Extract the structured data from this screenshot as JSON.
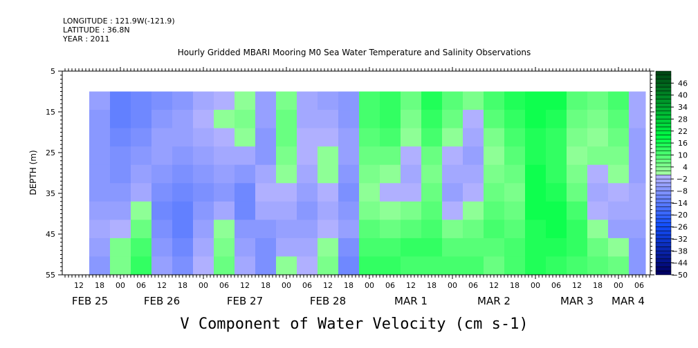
{
  "header": {
    "longitude": "LONGITUDE : 121.9W(-121.9)",
    "latitude": "LATITUDE : 36.8N",
    "year": "YEAR : 2011"
  },
  "chart_data": {
    "type": "heatmap",
    "title": "Hourly Gridded MBARI Mooring M0 Sea Water Temperature and Salinity Observations",
    "xlabel": "V Component of Water Velocity (cm s-1)",
    "ylabel": "DEPTH (m)",
    "xlim_hours_from_feb25_00": [
      7,
      177.4
    ],
    "ylim": [
      55,
      5
    ],
    "y_ticks": [
      5,
      15,
      25,
      35,
      45,
      55
    ],
    "x_tick_labels": [
      "12",
      "18",
      "00",
      "06",
      "12",
      "18",
      "00",
      "06",
      "12",
      "18",
      "00",
      "06",
      "12",
      "18",
      "00",
      "06",
      "12",
      "18",
      "00",
      "06",
      "12",
      "18",
      "00",
      "06",
      "12",
      "18",
      "00",
      "06"
    ],
    "x_tick_start_hour": 12,
    "x_tick_step_hours": 6,
    "date_labels": [
      "FEB 25",
      "FEB 26",
      "FEB 27",
      "FEB 28",
      "MAR  1",
      "MAR  2",
      "MAR  3",
      "MAR  4"
    ],
    "colorbar": {
      "min": -50,
      "max": 52,
      "step": 2,
      "tick_labels": [
        "46",
        "40",
        "34",
        "28",
        "22",
        "16",
        "10",
        "4",
        "-2",
        "-8",
        "-14",
        "-20",
        "-26",
        "-32",
        "-38",
        "-44",
        "-50"
      ]
    },
    "grid_time_start_hour": 15,
    "grid_time_step_hours": 6,
    "depths": [
      10,
      15,
      20,
      25,
      30,
      35,
      40,
      45,
      50,
      55
    ],
    "values": [
      [
        -6,
        -8,
        -8,
        -8,
        -8,
        -8,
        -6,
        -4,
        -6,
        -8
      ],
      [
        -14,
        -14,
        -12,
        -10,
        -10,
        -8,
        -6,
        -2,
        4,
        4
      ],
      [
        -12,
        -12,
        -10,
        -8,
        -6,
        -4,
        2,
        6,
        10,
        12
      ],
      [
        -10,
        -8,
        -6,
        -6,
        -8,
        -10,
        -12,
        -10,
        -8,
        -6
      ],
      [
        -8,
        -6,
        -6,
        -8,
        -10,
        -12,
        -14,
        -14,
        -12,
        -10
      ],
      [
        -4,
        -2,
        -4,
        -6,
        -8,
        -10,
        -8,
        -6,
        -4,
        -2
      ],
      [
        -2,
        2,
        -2,
        -4,
        -6,
        -8,
        -4,
        2,
        4,
        6
      ],
      [
        2,
        4,
        2,
        -4,
        -8,
        -12,
        -12,
        -8,
        -6,
        -4
      ],
      [
        -6,
        -6,
        -8,
        -8,
        -4,
        -2,
        -4,
        -8,
        -10,
        -10
      ],
      [
        4,
        6,
        6,
        4,
        2,
        -2,
        -4,
        -6,
        -4,
        2
      ],
      [
        -4,
        -4,
        -2,
        -2,
        -4,
        -6,
        -8,
        -6,
        -4,
        -2
      ],
      [
        -6,
        -4,
        -2,
        2,
        2,
        -2,
        -4,
        -2,
        2,
        4
      ],
      [
        -8,
        -8,
        -6,
        -6,
        -8,
        -10,
        -8,
        -6,
        -10,
        -12
      ],
      [
        10,
        10,
        8,
        6,
        4,
        2,
        4,
        8,
        10,
        12
      ],
      [
        12,
        12,
        10,
        6,
        2,
        -2,
        2,
        6,
        10,
        12
      ],
      [
        6,
        4,
        2,
        -2,
        -4,
        -2,
        4,
        8,
        12,
        10
      ],
      [
        14,
        12,
        10,
        6,
        4,
        6,
        8,
        10,
        12,
        10
      ],
      [
        8,
        6,
        2,
        -2,
        -4,
        -6,
        -2,
        4,
        8,
        10
      ],
      [
        4,
        -2,
        -4,
        -6,
        -4,
        -2,
        2,
        6,
        8,
        10
      ],
      [
        10,
        8,
        4,
        2,
        4,
        6,
        8,
        10,
        8,
        6
      ],
      [
        14,
        12,
        10,
        8,
        6,
        4,
        6,
        8,
        10,
        10
      ],
      [
        16,
        16,
        14,
        14,
        16,
        16,
        16,
        14,
        14,
        14
      ],
      [
        16,
        14,
        12,
        12,
        12,
        14,
        16,
        16,
        14,
        12
      ],
      [
        8,
        6,
        4,
        2,
        4,
        6,
        10,
        12,
        12,
        10
      ],
      [
        6,
        4,
        2,
        4,
        -2,
        -4,
        -2,
        2,
        6,
        8
      ],
      [
        10,
        8,
        6,
        4,
        2,
        -2,
        -4,
        -6,
        2,
        6
      ],
      [
        -4,
        -4,
        -6,
        -6,
        -6,
        -4,
        -4,
        -6,
        -8,
        -8
      ]
    ]
  }
}
